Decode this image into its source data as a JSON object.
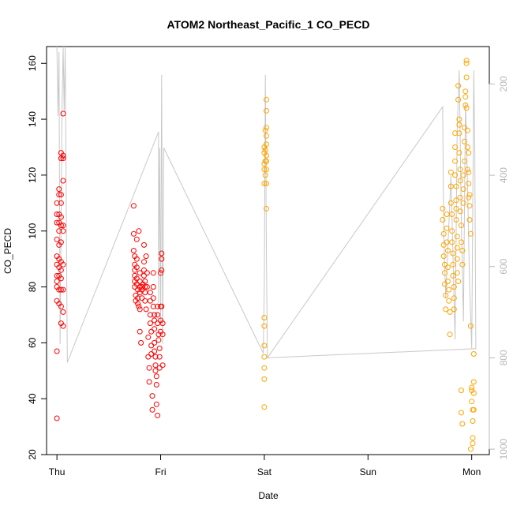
{
  "chart_data": {
    "type": "scatter",
    "title": "ATOM2 Northeast_Pacific_1 CO_PECD",
    "xlabel": "Date",
    "ylabel": "CO_PECD",
    "x_ticks": [
      "Thu",
      "Fri",
      "Sat",
      "Sun",
      "Mon"
    ],
    "xlim": [
      -0.1,
      4.17
    ],
    "ylim": [
      20,
      166
    ],
    "y_ticks": [
      20,
      40,
      60,
      80,
      100,
      120,
      140,
      160
    ],
    "y2_label": "",
    "y2_ticks": [
      200,
      400,
      600,
      800,
      1000
    ],
    "y2lim": [
      1012,
      118
    ],
    "y2_reversed": true,
    "grid": false,
    "legend": "none",
    "colors": {
      "series_red": "#ff0000",
      "series_orange": "#ffa500",
      "pressure_line": "#c8c8c8"
    },
    "series": [
      {
        "color": "red",
        "points": [
          [
            0.0,
            33
          ],
          [
            0.0,
            57
          ],
          [
            0.0,
            75
          ],
          [
            0.0,
            80
          ],
          [
            0.0,
            82
          ],
          [
            0.0,
            84
          ],
          [
            0.0,
            88
          ],
          [
            0.0,
            91
          ],
          [
            0.0,
            97
          ],
          [
            0.0,
            103
          ],
          [
            0.0,
            106
          ],
          [
            0.0,
            110
          ],
          [
            0.02,
            74
          ],
          [
            0.02,
            79
          ],
          [
            0.02,
            84
          ],
          [
            0.02,
            87
          ],
          [
            0.02,
            90
          ],
          [
            0.02,
            95
          ],
          [
            0.02,
            100
          ],
          [
            0.02,
            103
          ],
          [
            0.02,
            106
          ],
          [
            0.02,
            113
          ],
          [
            0.02,
            115
          ],
          [
            0.04,
            67
          ],
          [
            0.04,
            73
          ],
          [
            0.04,
            79
          ],
          [
            0.04,
            83
          ],
          [
            0.04,
            86
          ],
          [
            0.04,
            89
          ],
          [
            0.04,
            96
          ],
          [
            0.04,
            102
          ],
          [
            0.04,
            105
          ],
          [
            0.04,
            110
          ],
          [
            0.04,
            113
          ],
          [
            0.04,
            126
          ],
          [
            0.04,
            128
          ],
          [
            0.06,
            66
          ],
          [
            0.06,
            71
          ],
          [
            0.06,
            79
          ],
          [
            0.06,
            88
          ],
          [
            0.06,
            100
          ],
          [
            0.06,
            102
          ],
          [
            0.06,
            118
          ],
          [
            0.06,
            126
          ],
          [
            0.06,
            127
          ],
          [
            0.06,
            142
          ],
          [
            0.74,
            109
          ],
          [
            0.74,
            99
          ],
          [
            0.74,
            93
          ],
          [
            0.75,
            91
          ],
          [
            0.75,
            88
          ],
          [
            0.75,
            86
          ],
          [
            0.75,
            84
          ],
          [
            0.75,
            82
          ],
          [
            0.75,
            80
          ],
          [
            0.76,
            77
          ],
          [
            0.76,
            75
          ],
          [
            0.77,
            97
          ],
          [
            0.77,
            90
          ],
          [
            0.77,
            87
          ],
          [
            0.77,
            83
          ],
          [
            0.77,
            81
          ],
          [
            0.78,
            79
          ],
          [
            0.78,
            76
          ],
          [
            0.78,
            74
          ],
          [
            0.79,
            73
          ],
          [
            0.79,
            100
          ],
          [
            0.8,
            85
          ],
          [
            0.8,
            82
          ],
          [
            0.8,
            80
          ],
          [
            0.8,
            78
          ],
          [
            0.8,
            72
          ],
          [
            0.8,
            64
          ],
          [
            0.81,
            60
          ],
          [
            0.82,
            79
          ],
          [
            0.82,
            76
          ],
          [
            0.82,
            80
          ],
          [
            0.83,
            81
          ],
          [
            0.84,
            95
          ],
          [
            0.84,
            89
          ],
          [
            0.84,
            86
          ],
          [
            0.84,
            84
          ],
          [
            0.85,
            82
          ],
          [
            0.85,
            80
          ],
          [
            0.85,
            78
          ],
          [
            0.85,
            75
          ],
          [
            0.86,
            72
          ],
          [
            0.86,
            91
          ],
          [
            0.87,
            85
          ],
          [
            0.87,
            80
          ],
          [
            0.88,
            62
          ],
          [
            0.88,
            55
          ],
          [
            0.89,
            51
          ],
          [
            0.89,
            46
          ],
          [
            0.9,
            78
          ],
          [
            0.9,
            75
          ],
          [
            0.9,
            70
          ],
          [
            0.9,
            67
          ],
          [
            0.91,
            64
          ],
          [
            0.91,
            59
          ],
          [
            0.91,
            56
          ],
          [
            0.92,
            41
          ],
          [
            0.92,
            36
          ],
          [
            0.93,
            85
          ],
          [
            0.93,
            80
          ],
          [
            0.93,
            76
          ],
          [
            0.93,
            73
          ],
          [
            0.94,
            70
          ],
          [
            0.94,
            68
          ],
          [
            0.94,
            65
          ],
          [
            0.94,
            60
          ],
          [
            0.94,
            57
          ],
          [
            0.95,
            55
          ],
          [
            0.95,
            52
          ],
          [
            0.95,
            50
          ],
          [
            0.96,
            48
          ],
          [
            0.96,
            45
          ],
          [
            0.96,
            38
          ],
          [
            0.97,
            34
          ],
          [
            0.97,
            73
          ],
          [
            0.97,
            70
          ],
          [
            0.97,
            67
          ],
          [
            0.98,
            63
          ],
          [
            0.98,
            61
          ],
          [
            0.99,
            58
          ],
          [
            0.99,
            55
          ],
          [
            0.99,
            51
          ],
          [
            1.0,
            85
          ],
          [
            1.0,
            73
          ],
          [
            1.0,
            68
          ],
          [
            1.0,
            64
          ],
          [
            1.01,
            92
          ],
          [
            1.01,
            90
          ],
          [
            1.01,
            86
          ],
          [
            1.01,
            73
          ],
          [
            1.02,
            67
          ],
          [
            1.02,
            63
          ],
          [
            1.02,
            52
          ]
        ]
      },
      {
        "color": "orange",
        "points": [
          [
            2.0,
            37
          ],
          [
            2.0,
            47
          ],
          [
            2.0,
            51
          ],
          [
            2.0,
            55
          ],
          [
            2.0,
            59
          ],
          [
            2.0,
            66
          ],
          [
            2.0,
            69
          ],
          [
            2.0,
            117
          ],
          [
            2.0,
            122
          ],
          [
            2.0,
            124
          ],
          [
            2.0,
            128
          ],
          [
            2.0,
            130
          ],
          [
            2.01,
            120
          ],
          [
            2.01,
            125
          ],
          [
            2.01,
            129
          ],
          [
            2.01,
            136
          ],
          [
            2.02,
            108
          ],
          [
            2.02,
            117
          ],
          [
            2.02,
            122
          ],
          [
            2.02,
            125
          ],
          [
            2.02,
            127
          ],
          [
            2.02,
            131
          ],
          [
            2.02,
            134
          ],
          [
            2.02,
            137
          ],
          [
            2.02,
            143
          ],
          [
            2.02,
            147
          ],
          [
            3.72,
            108
          ],
          [
            3.72,
            104
          ],
          [
            3.73,
            99
          ],
          [
            3.73,
            95
          ],
          [
            3.73,
            91
          ],
          [
            3.74,
            88
          ],
          [
            3.74,
            85
          ],
          [
            3.74,
            81
          ],
          [
            3.75,
            77
          ],
          [
            3.75,
            72
          ],
          [
            3.76,
            106
          ],
          [
            3.76,
            101
          ],
          [
            3.76,
            96
          ],
          [
            3.77,
            93
          ],
          [
            3.77,
            87
          ],
          [
            3.77,
            82
          ],
          [
            3.78,
            79
          ],
          [
            3.78,
            75
          ],
          [
            3.79,
            71
          ],
          [
            3.79,
            63
          ],
          [
            3.8,
            121
          ],
          [
            3.8,
            116
          ],
          [
            3.8,
            110
          ],
          [
            3.81,
            106
          ],
          [
            3.81,
            100
          ],
          [
            3.81,
            96
          ],
          [
            3.82,
            92
          ],
          [
            3.82,
            88
          ],
          [
            3.82,
            84
          ],
          [
            3.83,
            80
          ],
          [
            3.83,
            76
          ],
          [
            3.83,
            72
          ],
          [
            3.84,
            135
          ],
          [
            3.84,
            130
          ],
          [
            3.84,
            125
          ],
          [
            3.84,
            120
          ],
          [
            3.85,
            116
          ],
          [
            3.85,
            111
          ],
          [
            3.85,
            108
          ],
          [
            3.85,
            104
          ],
          [
            3.86,
            98
          ],
          [
            3.86,
            94
          ],
          [
            3.86,
            90
          ],
          [
            3.86,
            85
          ],
          [
            3.87,
            82
          ],
          [
            3.87,
            152
          ],
          [
            3.87,
            147
          ],
          [
            3.88,
            140
          ],
          [
            3.88,
            138
          ],
          [
            3.88,
            135
          ],
          [
            3.88,
            128
          ],
          [
            3.89,
            122
          ],
          [
            3.89,
            118
          ],
          [
            3.89,
            112
          ],
          [
            3.89,
            107
          ],
          [
            3.9,
            102
          ],
          [
            3.9,
            96
          ],
          [
            3.9,
            43
          ],
          [
            3.9,
            35
          ],
          [
            3.91,
            31
          ],
          [
            3.91,
            88
          ],
          [
            3.91,
            93
          ],
          [
            3.92,
            110
          ],
          [
            3.92,
            115
          ],
          [
            3.92,
            120
          ],
          [
            3.93,
            125
          ],
          [
            3.93,
            132
          ],
          [
            3.93,
            137
          ],
          [
            3.94,
            145
          ],
          [
            3.94,
            148
          ],
          [
            3.94,
            150
          ],
          [
            3.95,
            155
          ],
          [
            3.95,
            160
          ],
          [
            3.95,
            161
          ],
          [
            3.95,
            144
          ],
          [
            3.96,
            136
          ],
          [
            3.96,
            130
          ],
          [
            3.96,
            122
          ],
          [
            3.97,
            117
          ],
          [
            3.97,
            112
          ],
          [
            3.97,
            128
          ],
          [
            3.97,
            121
          ],
          [
            3.98,
            113
          ],
          [
            3.98,
            109
          ],
          [
            3.98,
            104
          ],
          [
            3.99,
            99
          ],
          [
            3.99,
            66
          ],
          [
            4.0,
            44
          ],
          [
            4.0,
            43
          ],
          [
            4.0,
            39
          ],
          [
            4.01,
            36
          ],
          [
            4.01,
            32
          ],
          [
            4.01,
            26
          ],
          [
            4.01,
            24
          ],
          [
            4.02,
            46
          ],
          [
            4.02,
            42
          ],
          [
            4.02,
            36
          ],
          [
            4.02,
            56
          ],
          [
            3.99,
            22
          ]
        ]
      }
    ],
    "pressure_line": [
      [
        0.0,
        50
      ],
      [
        0.01,
        270
      ],
      [
        0.02,
        130
      ],
      [
        0.03,
        770
      ],
      [
        0.05,
        240
      ],
      [
        0.06,
        50
      ],
      [
        0.07,
        260
      ],
      [
        0.08,
        60
      ],
      [
        0.1,
        810
      ],
      [
        0.98,
        305
      ],
      [
        0.98,
        680
      ],
      [
        0.99,
        340
      ],
      [
        1.0,
        720
      ],
      [
        1.01,
        180
      ],
      [
        1.02,
        770
      ],
      [
        1.03,
        340
      ],
      [
        1.99,
        790
      ],
      [
        2.0,
        640
      ],
      [
        2.01,
        180
      ],
      [
        2.02,
        560
      ],
      [
        2.03,
        800
      ],
      [
        3.72,
        250
      ],
      [
        3.73,
        530
      ],
      [
        3.75,
        670
      ],
      [
        3.8,
        400
      ],
      [
        3.84,
        760
      ],
      [
        3.86,
        300
      ],
      [
        3.88,
        170
      ],
      [
        3.9,
        500
      ],
      [
        3.92,
        720
      ],
      [
        3.94,
        240
      ],
      [
        3.96,
        420
      ],
      [
        3.98,
        640
      ],
      [
        4.0,
        780
      ],
      [
        4.02,
        170
      ],
      [
        4.03,
        350
      ],
      [
        4.04,
        780
      ],
      [
        2.03,
        800
      ]
    ]
  }
}
